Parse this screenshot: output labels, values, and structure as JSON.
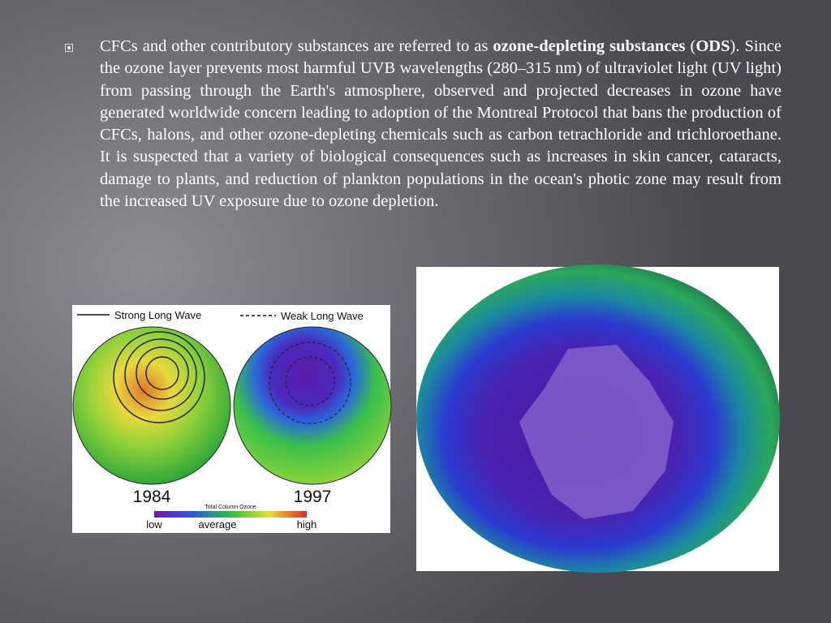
{
  "slide": {
    "paragraph": [
      {
        "text": "CFCs and other contributory substances are referred to as ",
        "bold": false
      },
      {
        "text": "ozone-depleting substances",
        "bold": true
      },
      {
        "text": " (",
        "bold": false
      },
      {
        "text": "ODS",
        "bold": true
      },
      {
        "text": "). Since the ozone layer prevents most harmful UVB wavelengths (280–315 nm) of ultraviolet light (UV light) from passing through the Earth's atmosphere, observed and projected decreases in ozone have generated worldwide concern leading to adoption of the Montreal Protocol that bans the production of CFCs, halons, and other ozone-depleting chemicals such as carbon tetrachloride and trichloroethane. It is suspected that a variety of biological consequences such as increases in skin cancer, cataracts, damage to plants, and reduction of plankton populations in the ocean's photic zone may result from the increased UV exposure due to ozone depletion.",
        "bold": false
      }
    ],
    "figure_left": {
      "legend_solid": "Strong Long Wave",
      "legend_dashed": "Weak Long Wave",
      "year_left": "1984",
      "year_right": "1997",
      "colorbar_title": "Total Column Ozone",
      "colorbar_low": "low",
      "colorbar_mid": "average",
      "colorbar_high": "high"
    }
  }
}
